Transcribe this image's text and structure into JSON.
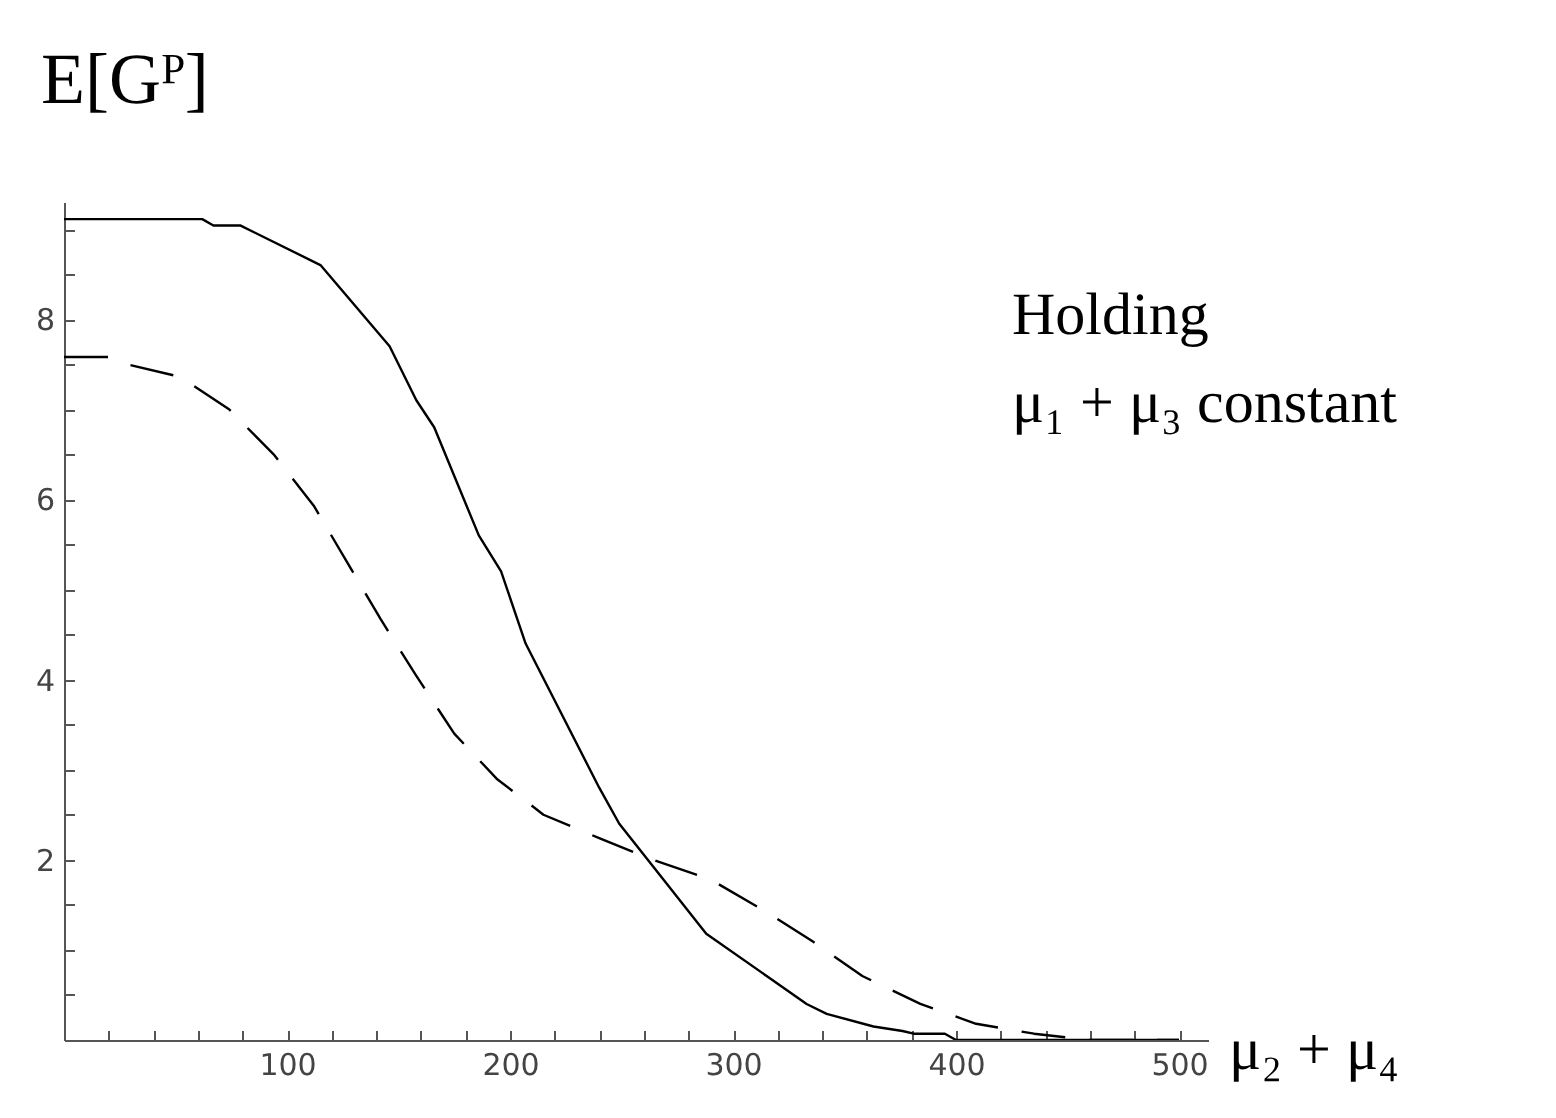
{
  "chart_data": {
    "type": "line",
    "ylabel": "E[Gᴾ]",
    "xlabel": "μ₂ + μ₄",
    "annotations": [
      "Holding\nμ₁ + μ₃ constant"
    ],
    "xlim": [
      0,
      513
    ],
    "ylim": [
      0,
      9.3
    ],
    "xticks": [
      {
        "value": 20,
        "label": null
      },
      {
        "value": 40,
        "label": null
      },
      {
        "value": 60,
        "label": null
      },
      {
        "value": 80,
        "label": null
      },
      100,
      {
        "value": 120,
        "label": null
      },
      {
        "value": 140,
        "label": null
      },
      {
        "value": 160,
        "label": null
      },
      {
        "value": 180,
        "label": null
      },
      200,
      {
        "value": 220,
        "label": null
      },
      {
        "value": 240,
        "label": null
      },
      {
        "value": 260,
        "label": null
      },
      {
        "value": 280,
        "label": null
      },
      300,
      {
        "value": 320,
        "label": null
      },
      {
        "value": 340,
        "label": null
      },
      {
        "value": 360,
        "label": null
      },
      {
        "value": 380,
        "label": null
      },
      400,
      {
        "value": 420,
        "label": null
      },
      {
        "value": 440,
        "label": null
      },
      {
        "value": 460,
        "label": null
      },
      {
        "value": 480,
        "label": null
      },
      500
    ],
    "yticks": [
      {
        "value": 0.5,
        "label": null
      },
      {
        "value": 1,
        "label": null
      },
      {
        "value": 1.5,
        "label": null
      },
      2,
      {
        "value": 2.5,
        "label": null
      },
      {
        "value": 3,
        "label": null
      },
      {
        "value": 3.5,
        "label": null
      },
      4,
      {
        "value": 4.5,
        "label": null
      },
      {
        "value": 5,
        "label": null
      },
      {
        "value": 5.5,
        "label": null
      },
      6,
      {
        "value": 6.5,
        "label": null
      },
      {
        "value": 7,
        "label": null
      },
      {
        "value": 7.5,
        "label": null
      },
      8,
      {
        "value": 8.5,
        "label": null
      },
      {
        "value": 9,
        "label": null
      }
    ],
    "series": [
      {
        "color": "#000000",
        "line_style": "solid",
        "x": [
          0,
          62,
          67,
          79,
          115,
          146,
          158,
          166,
          186,
          196,
          207,
          240,
          249,
          264,
          288,
          333,
          342,
          363,
          376,
          381,
          395,
          400,
          500
        ],
        "values": [
          9.11,
          9.11,
          9.04,
          9.04,
          8.6,
          7.7,
          7.1,
          6.8,
          5.6,
          5.2,
          4.4,
          2.8,
          2.4,
          1.93,
          1.18,
          0.4,
          0.29,
          0.15,
          0.1,
          0.07,
          0.07,
          0,
          0
        ]
      },
      {
        "color": "#000000",
        "line_style": "dashed",
        "x": [
          0,
          20,
          28,
          52,
          74,
          94,
          112,
          127,
          142,
          158,
          175,
          194,
          215,
          240,
          264,
          290,
          315,
          336,
          358,
          384,
          409,
          435,
          460,
          500
        ],
        "values": [
          7.58,
          7.58,
          7.5,
          7.36,
          7.0,
          6.5,
          5.93,
          5.3,
          4.67,
          4.04,
          3.4,
          2.9,
          2.5,
          2.24,
          2.0,
          1.78,
          1.42,
          1.09,
          0.71,
          0.4,
          0.18,
          0.07,
          0,
          0
        ]
      }
    ]
  }
}
